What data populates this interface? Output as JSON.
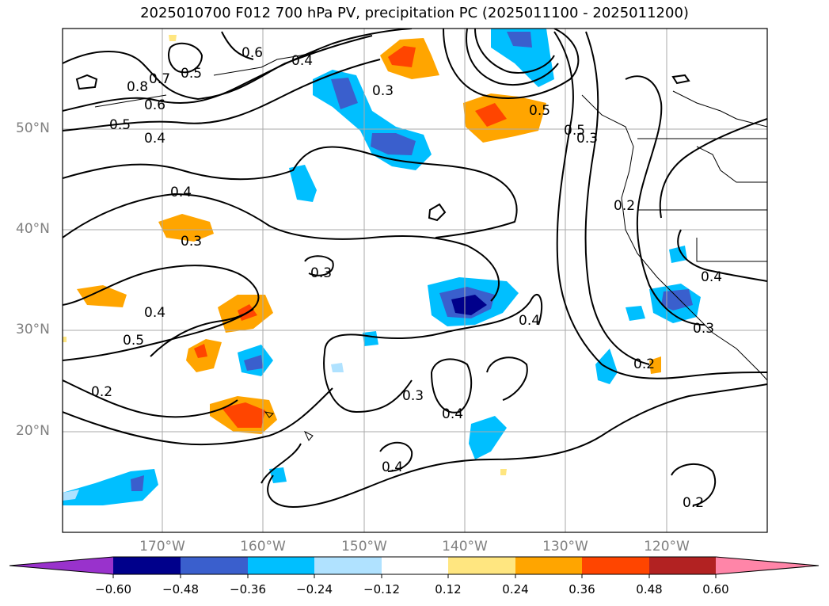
{
  "title": "2025010700 F012 700 hPa PV, precipitation PC (2025011100 - 2025011200)",
  "lat_labels": [
    "50°N",
    "40°N",
    "30°N",
    "20°N"
  ],
  "lon_labels": [
    "170°W",
    "160°W",
    "150°W",
    "140°W",
    "130°W",
    "120°W"
  ],
  "contour_labels": [
    "0.7",
    "0.8",
    "0.6",
    "0.5",
    "0.5",
    "0.4",
    "0.6",
    "0.4",
    "0.3",
    "0.5",
    "0.4",
    "0.3",
    "0.3",
    "0.4",
    "0.5",
    "0.2",
    "0.3",
    "0.4",
    "0.4",
    "0.4",
    "0.2",
    "0.5",
    "0.3",
    "0.4",
    "0.3",
    "0.2",
    "0.2"
  ],
  "colorbar": {
    "ticks": [
      "−0.60",
      "−0.48",
      "−0.36",
      "−0.24",
      "−0.12",
      "0.12",
      "0.24",
      "0.36",
      "0.48",
      "0.60"
    ],
    "colors": [
      "#9932cc",
      "#00008b",
      "#3a5fcd",
      "#00bfff",
      "#b0e2ff",
      "#ffffff",
      "#ffe680",
      "#ffa500",
      "#ff4500",
      "#b22222",
      "#ff85a8"
    ]
  }
}
